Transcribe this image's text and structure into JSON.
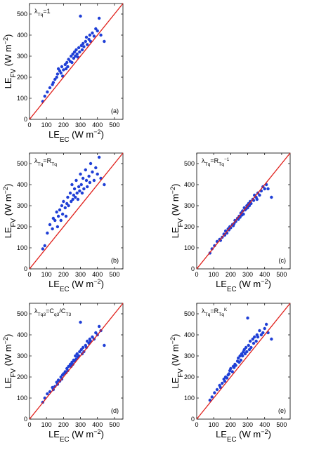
{
  "chart_data": [
    {
      "type": "scatter",
      "color": "#1f3fd6",
      "reference_line_color": "#e0201b",
      "annotation": [
        {
          "text": "λ"
        },
        {
          "text": "Tq",
          "sub": true
        },
        {
          "text": "=1"
        }
      ],
      "panel_label": "(a)",
      "xlabel": [
        {
          "text": "LE"
        },
        {
          "text": "EC",
          "sub": true
        },
        {
          "text": " (W m"
        },
        {
          "text": "−2",
          "sup": true
        },
        {
          "text": ")"
        }
      ],
      "ylabel": [
        {
          "text": "LE"
        },
        {
          "text": "FV",
          "sub": true
        },
        {
          "text": " (W m"
        },
        {
          "text": "−2",
          "sup": true
        },
        {
          "text": ")"
        }
      ],
      "xlim": [
        0,
        550
      ],
      "ylim": [
        0,
        550
      ],
      "xticks": [
        0,
        100,
        200,
        300,
        400,
        500
      ],
      "yticks": [
        0,
        100,
        200,
        300,
        400,
        500
      ],
      "x": [
        78,
        90,
        105,
        120,
        135,
        140,
        150,
        160,
        165,
        170,
        178,
        185,
        190,
        195,
        200,
        210,
        215,
        220,
        225,
        230,
        240,
        245,
        250,
        255,
        260,
        265,
        270,
        275,
        280,
        285,
        290,
        295,
        300,
        305,
        310,
        315,
        320,
        330,
        335,
        340,
        350,
        355,
        360,
        370,
        380,
        390,
        400,
        410,
        420,
        440
      ],
      "y": [
        85,
        110,
        130,
        150,
        165,
        175,
        190,
        200,
        215,
        240,
        230,
        220,
        250,
        205,
        235,
        260,
        240,
        270,
        250,
        285,
        275,
        300,
        270,
        310,
        290,
        320,
        300,
        330,
        310,
        295,
        340,
        320,
        490,
        350,
        330,
        360,
        345,
        370,
        390,
        355,
        380,
        400,
        370,
        410,
        395,
        430,
        420,
        480,
        400,
        370
      ]
    },
    {
      "type": "scatter",
      "color": "#1f3fd6",
      "reference_line_color": "#e0201b",
      "annotation": [
        {
          "text": "λ"
        },
        {
          "text": "Tq",
          "sub": true
        },
        {
          "text": "=R"
        },
        {
          "text": "Tq",
          "sub": true
        }
      ],
      "panel_label": "(b)",
      "xlabel": [
        {
          "text": "LE"
        },
        {
          "text": "EC",
          "sub": true
        },
        {
          "text": " (W m"
        },
        {
          "text": "−2",
          "sup": true
        },
        {
          "text": ")"
        }
      ],
      "ylabel": [
        {
          "text": "LE"
        },
        {
          "text": "FV",
          "sub": true
        },
        {
          "text": " (W m"
        },
        {
          "text": "−2",
          "sup": true
        },
        {
          "text": ")"
        }
      ],
      "xlim": [
        0,
        550
      ],
      "ylim": [
        0,
        550
      ],
      "xticks": [
        0,
        100,
        200,
        300,
        400,
        500
      ],
      "yticks": [
        0,
        100,
        200,
        300,
        400,
        500
      ],
      "x": [
        78,
        90,
        105,
        120,
        135,
        140,
        150,
        160,
        165,
        170,
        178,
        185,
        190,
        195,
        200,
        210,
        215,
        220,
        225,
        230,
        240,
        245,
        250,
        255,
        260,
        265,
        270,
        275,
        280,
        285,
        290,
        295,
        300,
        305,
        310,
        315,
        320,
        330,
        335,
        340,
        350,
        355,
        360,
        370,
        380,
        390,
        400,
        410,
        420,
        440
      ],
      "y": [
        95,
        110,
        170,
        210,
        190,
        240,
        230,
        270,
        200,
        250,
        280,
        230,
        300,
        260,
        320,
        290,
        250,
        310,
        340,
        300,
        360,
        320,
        400,
        330,
        350,
        380,
        340,
        420,
        360,
        330,
        390,
        370,
        450,
        400,
        360,
        430,
        380,
        470,
        420,
        390,
        440,
        410,
        500,
        460,
        420,
        480,
        450,
        530,
        430,
        400
      ]
    },
    {
      "type": "scatter",
      "color": "#1f3fd6",
      "reference_line_color": "#e0201b",
      "annotation": [
        {
          "text": "λ"
        },
        {
          "text": "Tq",
          "sub": true
        },
        {
          "text": "=R"
        },
        {
          "text": "Tq",
          "sub": true
        },
        {
          "text": "−1",
          "sup": true
        }
      ],
      "panel_label": "(c)",
      "xlabel": [
        {
          "text": "LE"
        },
        {
          "text": "EC",
          "sub": true
        },
        {
          "text": " (W m"
        },
        {
          "text": "−2",
          "sup": true
        },
        {
          "text": ")"
        }
      ],
      "ylabel": [
        {
          "text": "LE"
        },
        {
          "text": "FV",
          "sub": true
        },
        {
          "text": " (W m"
        },
        {
          "text": "−2",
          "sup": true
        },
        {
          "text": ")"
        }
      ],
      "xlim": [
        0,
        550
      ],
      "ylim": [
        0,
        550
      ],
      "xticks": [
        0,
        100,
        200,
        300,
        400,
        500
      ],
      "yticks": [
        0,
        100,
        200,
        300,
        400,
        500
      ],
      "x": [
        78,
        90,
        105,
        120,
        135,
        140,
        150,
        160,
        165,
        170,
        178,
        185,
        190,
        195,
        200,
        210,
        215,
        220,
        225,
        230,
        240,
        245,
        250,
        255,
        260,
        265,
        270,
        275,
        280,
        285,
        290,
        295,
        300,
        305,
        310,
        315,
        320,
        330,
        335,
        340,
        350,
        355,
        360,
        370,
        380,
        390,
        400,
        410,
        420,
        440
      ],
      "y": [
        75,
        95,
        110,
        130,
        140,
        135,
        150,
        165,
        160,
        180,
        170,
        190,
        185,
        200,
        195,
        210,
        205,
        215,
        230,
        225,
        240,
        235,
        250,
        245,
        265,
        255,
        275,
        260,
        290,
        280,
        285,
        300,
        290,
        310,
        300,
        320,
        310,
        330,
        325,
        350,
        340,
        330,
        360,
        350,
        370,
        390,
        380,
        400,
        380,
        340
      ]
    },
    {
      "type": "scatter",
      "color": "#1f3fd6",
      "reference_line_color": "#e0201b",
      "annotation": [
        {
          "text": "λ"
        },
        {
          "text": "Tq3",
          "sub": true
        },
        {
          "text": "=C"
        },
        {
          "text": "q3",
          "sub": true
        },
        {
          "text": "/C"
        },
        {
          "text": "T3",
          "sub": true
        }
      ],
      "panel_label": "(d)",
      "xlabel": [
        {
          "text": "LE"
        },
        {
          "text": "EC",
          "sub": true
        },
        {
          "text": " (W m"
        },
        {
          "text": "−2",
          "sup": true
        },
        {
          "text": ")"
        }
      ],
      "ylabel": [
        {
          "text": "LE"
        },
        {
          "text": "FV",
          "sub": true
        },
        {
          "text": " (W m"
        },
        {
          "text": "−2",
          "sup": true
        },
        {
          "text": ")"
        }
      ],
      "xlim": [
        0,
        550
      ],
      "ylim": [
        0,
        550
      ],
      "xticks": [
        0,
        100,
        200,
        300,
        400,
        500
      ],
      "yticks": [
        0,
        100,
        200,
        300,
        400,
        500
      ],
      "x": [
        78,
        90,
        105,
        120,
        135,
        140,
        150,
        160,
        165,
        170,
        178,
        185,
        190,
        195,
        200,
        210,
        215,
        220,
        225,
        230,
        240,
        245,
        250,
        255,
        260,
        265,
        270,
        275,
        280,
        285,
        290,
        295,
        300,
        305,
        310,
        315,
        320,
        330,
        335,
        340,
        350,
        355,
        360,
        370,
        380,
        390,
        400,
        410,
        420,
        440
      ],
      "y": [
        80,
        100,
        120,
        130,
        150,
        140,
        155,
        175,
        165,
        185,
        180,
        200,
        190,
        210,
        215,
        225,
        220,
        240,
        230,
        250,
        260,
        250,
        270,
        260,
        280,
        275,
        300,
        285,
        310,
        295,
        300,
        320,
        460,
        330,
        310,
        340,
        320,
        350,
        340,
        370,
        360,
        380,
        370,
        390,
        380,
        410,
        400,
        440,
        420,
        350
      ]
    },
    {
      "type": "scatter",
      "color": "#1f3fd6",
      "reference_line_color": "#e0201b",
      "annotation": [
        {
          "text": "λ"
        },
        {
          "text": "Tq",
          "sub": true
        },
        {
          "text": "=R"
        },
        {
          "text": "Tq",
          "sub": true
        },
        {
          "text": "K",
          "sup": true
        }
      ],
      "panel_label": "(e)",
      "xlabel": [
        {
          "text": "LE"
        },
        {
          "text": "EC",
          "sub": true
        },
        {
          "text": " (W m"
        },
        {
          "text": "−2",
          "sup": true
        },
        {
          "text": ")"
        }
      ],
      "ylabel": [
        {
          "text": "LE"
        },
        {
          "text": "FV",
          "sub": true
        },
        {
          "text": " (W m"
        },
        {
          "text": "−2",
          "sup": true
        },
        {
          "text": ")"
        }
      ],
      "xlim": [
        0,
        550
      ],
      "ylim": [
        0,
        550
      ],
      "xticks": [
        0,
        100,
        200,
        300,
        400,
        500
      ],
      "yticks": [
        0,
        100,
        200,
        300,
        400,
        500
      ],
      "x": [
        78,
        90,
        105,
        120,
        135,
        140,
        150,
        160,
        165,
        170,
        178,
        185,
        190,
        195,
        200,
        210,
        215,
        220,
        225,
        230,
        240,
        245,
        250,
        255,
        260,
        265,
        270,
        275,
        280,
        285,
        290,
        295,
        300,
        305,
        310,
        315,
        320,
        330,
        335,
        340,
        350,
        355,
        360,
        370,
        380,
        390,
        400,
        410,
        420,
        440
      ],
      "y": [
        90,
        105,
        125,
        140,
        160,
        150,
        170,
        190,
        180,
        200,
        195,
        210,
        215,
        230,
        240,
        225,
        250,
        245,
        260,
        255,
        275,
        290,
        270,
        300,
        280,
        310,
        300,
        320,
        330,
        310,
        340,
        320,
        480,
        350,
        330,
        370,
        340,
        380,
        360,
        390,
        370,
        400,
        390,
        420,
        400,
        410,
        430,
        450,
        410,
        380
      ]
    }
  ]
}
